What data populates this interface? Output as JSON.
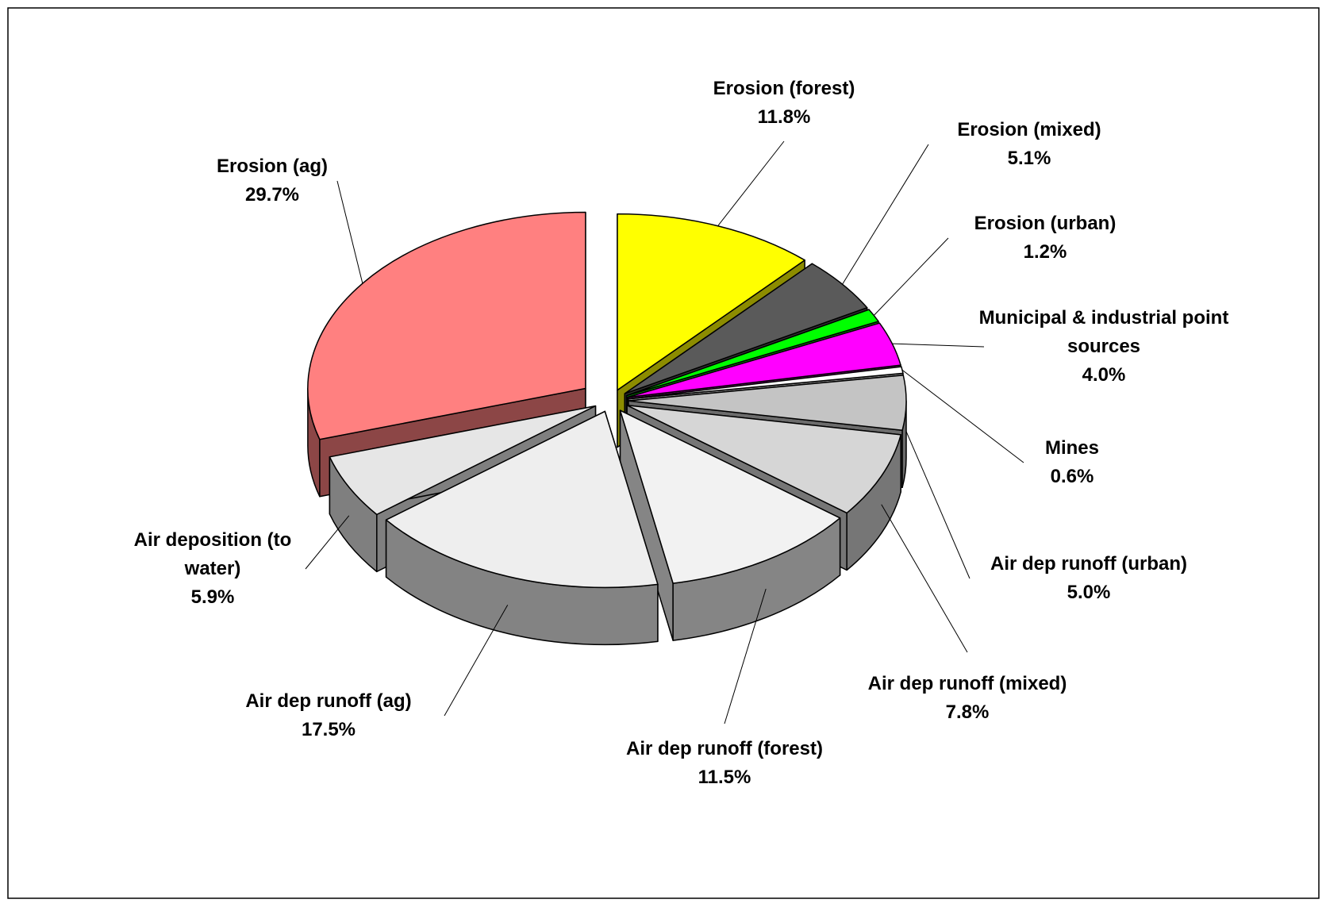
{
  "chart_data": {
    "type": "pie",
    "categories": [
      "Erosion (forest)",
      "Erosion (mixed)",
      "Erosion (urban)",
      "Municipal & industrial point sources",
      "Mines",
      "Air dep runoff (urban)",
      "Air dep runoff (mixed)",
      "Air dep runoff (forest)",
      "Air dep runoff (ag)",
      "Air deposition (to water)",
      "Erosion (ag)"
    ],
    "values": [
      11.8,
      5.1,
      1.2,
      4.0,
      0.6,
      5.0,
      7.8,
      11.5,
      17.5,
      5.9,
      29.7
    ],
    "value_labels": [
      "11.8%",
      "5.1%",
      "1.2%",
      "4.0%",
      "0.6%",
      "5.0%",
      "7.8%",
      "11.5%",
      "17.5%",
      "5.9%",
      "29.7%"
    ],
    "colors": [
      "#ffff00",
      "#5a5a5a",
      "#00ff00",
      "#ff00ff",
      "#ffffff",
      "#c4c4c4",
      "#d6d6d6",
      "#f2f2f2",
      "#eeeeee",
      "#e6e6e6",
      "#ff8080"
    ]
  }
}
